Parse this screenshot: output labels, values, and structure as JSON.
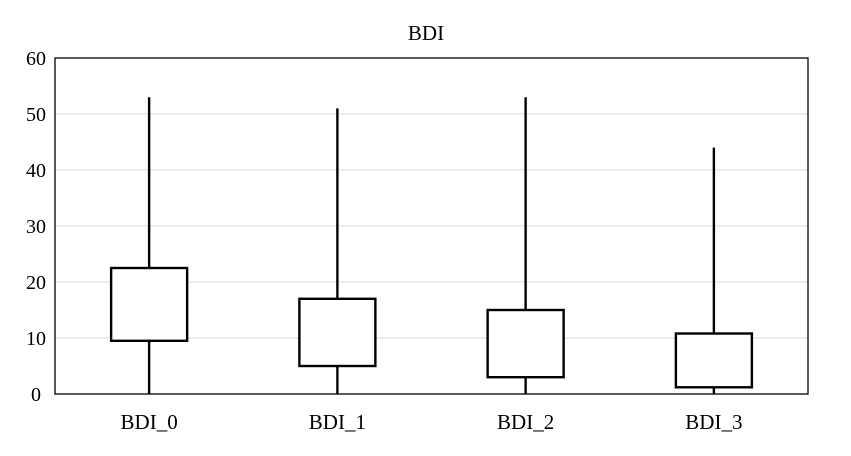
{
  "chart_data": {
    "type": "box",
    "title": "BDI",
    "xlabel": "",
    "ylabel": "",
    "ylim": [
      0,
      60
    ],
    "yticks": [
      "0",
      "10",
      "20",
      "30",
      "40",
      "50",
      "60"
    ],
    "grid": true,
    "legend": "none",
    "categories": [
      "BDI_0",
      "BDI_1",
      "BDI_2",
      "BDI_3"
    ],
    "boxes": [
      {
        "category": "BDI_0",
        "min": 0,
        "q1": 9.5,
        "q3": 22.5,
        "max": 53
      },
      {
        "category": "BDI_1",
        "min": 0,
        "q1": 5,
        "q3": 17,
        "max": 51
      },
      {
        "category": "BDI_2",
        "min": 0,
        "q1": 3,
        "q3": 15,
        "max": 53
      },
      {
        "category": "BDI_3",
        "min": 0,
        "q1": 1.2,
        "q3": 10.8,
        "max": 44
      }
    ],
    "colors": {
      "box_fill": "#ffffff",
      "stroke": "#000000",
      "grid": "#d9d9d9"
    }
  }
}
